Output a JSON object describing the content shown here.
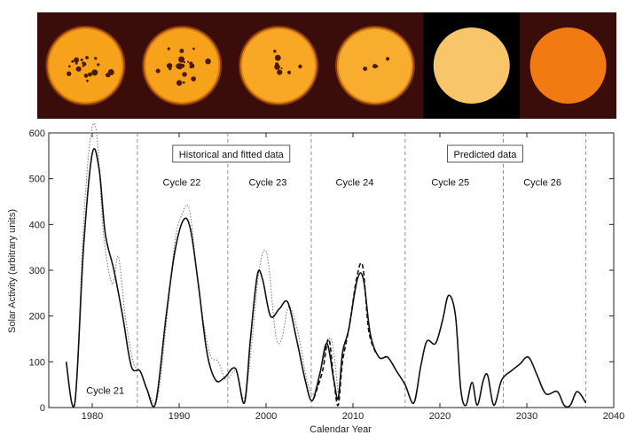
{
  "sun_images": [
    {
      "name": "sun-image-1",
      "kind": "spotty",
      "spots": "many",
      "background": "#3a0d0a",
      "disk_color": "#f7a21b"
    },
    {
      "name": "sun-image-2",
      "kind": "spotty",
      "spots": "many",
      "background": "#3a0d0a",
      "disk_color": "#f7a21b"
    },
    {
      "name": "sun-image-3",
      "kind": "spotty",
      "spots": "some",
      "background": "#3a0d0a",
      "disk_color": "#f8a825"
    },
    {
      "name": "sun-image-4",
      "kind": "spotty",
      "spots": "few",
      "background": "#3a0d0a",
      "disk_color": "#f8ad2e"
    },
    {
      "name": "sun-image-5",
      "kind": "plain",
      "spots": "none",
      "background": "#000000",
      "disk_color": "#f9c56b"
    },
    {
      "name": "sun-image-6",
      "kind": "plain",
      "spots": "none",
      "background": "#3a0d0a",
      "disk_color": "#f27a12"
    }
  ],
  "chart_data": {
    "type": "line",
    "xlabel": "Calendar Year",
    "ylabel": "Solar Activity (arbitrary units)",
    "xlim": [
      1975,
      2040
    ],
    "ylim": [
      0,
      600
    ],
    "xticks": [
      1980,
      1990,
      2000,
      2010,
      2020,
      2030,
      2040
    ],
    "yticks": [
      0,
      100,
      200,
      300,
      400,
      500,
      600
    ],
    "cycle_boundaries": [
      1985.2,
      1995.6,
      2005.2,
      2016.0,
      2027.3,
      2036.8
    ],
    "annotations": {
      "historical_box": "Historical and fitted data",
      "predicted_box": "Predicted data"
    },
    "cycles": [
      {
        "label": "Cycle 21",
        "x": 1981.5,
        "y": 30
      },
      {
        "label": "Cycle 22",
        "x": 1990.3,
        "y": 485
      },
      {
        "label": "Cycle 23",
        "x": 2000.2,
        "y": 485
      },
      {
        "label": "Cycle 24",
        "x": 2010.2,
        "y": 485
      },
      {
        "label": "Cycle 25",
        "x": 2021.2,
        "y": 485
      },
      {
        "label": "Cycle 26",
        "x": 2031.8,
        "y": 485
      }
    ],
    "series": [
      {
        "style": "solid",
        "x": [
          1977,
          1978,
          1979,
          1980,
          1980.8,
          1981.5,
          1982.5,
          1983.5,
          1984.5,
          1985.5,
          1986.3,
          1987.3,
          1988.5,
          1989.5,
          1990.5,
          1991.3,
          1992.2,
          1993.2,
          1994.2,
          1995.2,
          1996.5,
          1997.5,
          1998.2,
          1999,
          1999.6,
          2000.5,
          2001.5,
          2002.5,
          2003.5,
          2004.5,
          2005.3,
          2006.2,
          2007,
          2007.8,
          2008.3,
          2008.8,
          2009.5,
          2010.5,
          2011.2,
          2012,
          2013,
          2014,
          2015,
          2016,
          2017,
          2017.8,
          2018.5,
          2019.5,
          2020.3,
          2021,
          2021.8,
          2022.4,
          2023,
          2023.7,
          2024.3,
          2025,
          2025.5,
          2026.2,
          2027,
          2027.5,
          2028.2,
          2029.2,
          2030.2,
          2031.2,
          2032.2,
          2033.5,
          2034.3,
          2035,
          2035.8,
          2036.8
        ],
        "y": [
          100,
          10,
          350,
          555,
          520,
          380,
          300,
          200,
          90,
          80,
          40,
          10,
          200,
          340,
          410,
          390,
          270,
          120,
          60,
          65,
          85,
          10,
          150,
          290,
          280,
          200,
          215,
          230,
          150,
          60,
          15,
          75,
          140,
          60,
          20,
          120,
          170,
          280,
          280,
          160,
          110,
          110,
          80,
          50,
          10,
          90,
          145,
          140,
          190,
          245,
          200,
          40,
          5,
          55,
          5,
          60,
          70,
          5,
          55,
          70,
          80,
          95,
          110,
          70,
          30,
          35,
          5,
          5,
          35,
          10
        ]
      },
      {
        "style": "dotted",
        "x": [
          1977,
          1978,
          1979,
          1979.8,
          1980.5,
          1981.3,
          1982.3,
          1983,
          1983.8,
          1984.7,
          1985.5,
          1986.5,
          1987.5,
          1988.5,
          1989.5,
          1990.3,
          1991.2,
          1992.3,
          1993.5,
          1994.5,
          1995.4,
          1996.5,
          1997.5,
          1998.3,
          1999.2,
          2000.1,
          2001.1,
          2001.8,
          2002.6,
          2003.6,
          2004.7,
          2005.5,
          2006.5,
          2007.5,
          2008.3
        ],
        "y": [
          100,
          15,
          400,
          590,
          600,
          380,
          270,
          330,
          200,
          100,
          80,
          30,
          20,
          180,
          360,
          420,
          430,
          250,
          120,
          100,
          60,
          80,
          20,
          130,
          300,
          335,
          160,
          150,
          220,
          170,
          60,
          30,
          100,
          150,
          30
        ]
      },
      {
        "style": "dashed",
        "x": [
          2005.5,
          2006.5,
          2007.2,
          2007.8,
          2008.3,
          2008.8,
          2009.6,
          2010.4,
          2011.1,
          2011.8,
          2012.6
        ],
        "y": [
          20,
          80,
          150,
          60,
          5,
          100,
          180,
          280,
          310,
          170,
          120
        ]
      }
    ]
  }
}
